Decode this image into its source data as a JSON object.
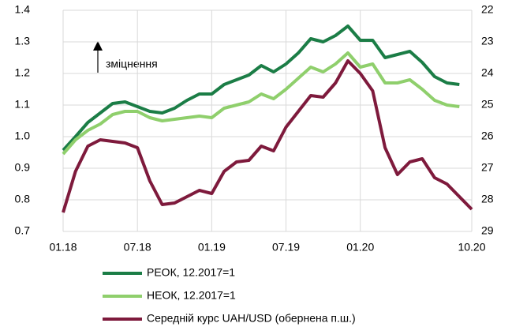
{
  "chart_data": {
    "type": "line",
    "categories": [
      "01.18",
      null,
      null,
      null,
      null,
      null,
      "07.18",
      null,
      null,
      null,
      null,
      null,
      "01.19",
      null,
      null,
      null,
      null,
      null,
      "07.19",
      null,
      null,
      null,
      null,
      null,
      "01.20",
      null,
      null,
      null,
      null,
      null,
      null,
      null,
      null,
      "10.20"
    ],
    "series": [
      {
        "name": "РЕОК, 12.2017=1",
        "color": "#1b7d46",
        "values": [
          0.957,
          1.0,
          1.045,
          1.075,
          1.105,
          1.11,
          1.095,
          1.08,
          1.075,
          1.09,
          1.115,
          1.135,
          1.135,
          1.165,
          1.18,
          1.195,
          1.225,
          1.205,
          1.23,
          1.265,
          1.31,
          1.3,
          1.32,
          1.35,
          1.305,
          1.305,
          1.25,
          1.26,
          1.27,
          1.235,
          1.19,
          1.17,
          1.165,
          null
        ]
      },
      {
        "name": "НЕОК, 12.2017=1",
        "color": "#8fcf6c",
        "values": [
          0.945,
          0.99,
          1.02,
          1.04,
          1.07,
          1.08,
          1.08,
          1.06,
          1.05,
          1.055,
          1.06,
          1.065,
          1.06,
          1.09,
          1.1,
          1.11,
          1.135,
          1.12,
          1.15,
          1.185,
          1.22,
          1.205,
          1.23,
          1.265,
          1.22,
          1.23,
          1.17,
          1.17,
          1.18,
          1.15,
          1.115,
          1.1,
          1.095,
          null
        ]
      },
      {
        "name": "Середній курс UAH/USD (обернена п.ш.)",
        "color": "#7e1a3c",
        "axis": "y2",
        "values": [
          28.4,
          27.1,
          26.3,
          26.1,
          26.15,
          26.2,
          26.35,
          27.4,
          28.15,
          28.1,
          27.9,
          27.7,
          27.8,
          27.1,
          26.8,
          26.75,
          26.3,
          26.45,
          25.7,
          25.2,
          24.7,
          24.75,
          24.3,
          23.6,
          24.0,
          24.55,
          26.35,
          27.2,
          26.8,
          26.7,
          27.3,
          27.5,
          27.9,
          28.3
        ]
      }
    ],
    "ylim": [
      0.7,
      1.4
    ],
    "yticks": [
      {
        "value": 0.7,
        "label": "0.7"
      },
      {
        "value": 0.8,
        "label": "0.8"
      },
      {
        "value": 0.9,
        "label": "0.9"
      },
      {
        "value": 1.0,
        "label": "1.0"
      },
      {
        "value": 1.1,
        "label": "1.1"
      },
      {
        "value": 1.2,
        "label": "1.2"
      },
      {
        "value": 1.3,
        "label": "1.3"
      },
      {
        "value": 1.4,
        "label": "1.4"
      }
    ],
    "y2lim": [
      29,
      22
    ],
    "y2ticks": [
      22,
      23,
      24,
      25,
      26,
      27,
      28,
      29
    ],
    "annotation": "зміцнення",
    "grid": true
  }
}
